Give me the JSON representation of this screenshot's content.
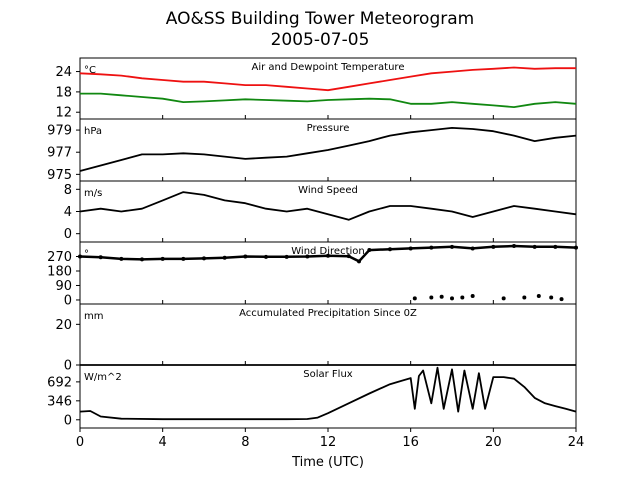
{
  "title_line1": "AO&SS Building Tower Meteorogram",
  "title_line2": "2005-07-05",
  "xlabel": "Time (UTC)",
  "colors": {
    "temperature": "#ee1111",
    "dewpoint": "#118811",
    "other": "#000000"
  },
  "chart_data": [
    {
      "type": "line",
      "title": "Air and Dewpoint Temperature",
      "unit_label": "°C",
      "xlim": [
        0,
        24
      ],
      "ylim": [
        10,
        28
      ],
      "yticks": [
        12,
        18,
        24
      ],
      "ytick_labels": [
        "12",
        "18",
        "24"
      ],
      "series": [
        {
          "color": "temperature",
          "x": [
            0,
            1,
            2,
            3,
            4,
            5,
            6,
            7,
            8,
            9,
            10,
            11,
            12,
            13,
            14,
            15,
            16,
            17,
            18,
            19,
            20,
            21,
            22,
            23,
            24
          ],
          "y": [
            23.5,
            23.2,
            22.8,
            22.0,
            21.5,
            21.0,
            21.0,
            20.5,
            20.0,
            20.0,
            19.5,
            19.0,
            18.5,
            19.5,
            20.5,
            21.5,
            22.5,
            23.5,
            24.0,
            24.5,
            24.8,
            25.2,
            24.8,
            25.0,
            25.0
          ]
        },
        {
          "color": "dewpoint",
          "x": [
            0,
            1,
            2,
            3,
            4,
            5,
            6,
            7,
            8,
            9,
            10,
            11,
            12,
            13,
            14,
            15,
            16,
            17,
            18,
            19,
            20,
            21,
            22,
            23,
            24
          ],
          "y": [
            17.5,
            17.5,
            17.0,
            16.5,
            16.0,
            15.0,
            15.2,
            15.5,
            15.8,
            15.6,
            15.4,
            15.2,
            15.6,
            15.8,
            16.0,
            15.8,
            14.5,
            14.5,
            15.0,
            14.5,
            14.0,
            13.5,
            14.5,
            15.0,
            14.5
          ]
        }
      ]
    },
    {
      "type": "line",
      "title": "Pressure",
      "unit_label": "hPa",
      "xlim": [
        0,
        24
      ],
      "ylim": [
        974.4,
        980.0
      ],
      "yticks": [
        975,
        977,
        979
      ],
      "ytick_labels": [
        "975",
        "977",
        "979"
      ],
      "series": [
        {
          "color": "other",
          "x": [
            0,
            1,
            2,
            3,
            4,
            5,
            6,
            7,
            8,
            9,
            10,
            11,
            12,
            13,
            14,
            15,
            16,
            17,
            18,
            19,
            20,
            21,
            22,
            23,
            24
          ],
          "y": [
            975.3,
            975.8,
            976.3,
            976.8,
            976.8,
            976.9,
            976.8,
            976.6,
            976.4,
            976.5,
            976.6,
            976.9,
            977.2,
            977.6,
            978.0,
            978.5,
            978.8,
            979.0,
            979.2,
            979.1,
            978.9,
            978.5,
            978.0,
            978.3,
            978.5
          ]
        }
      ]
    },
    {
      "type": "line",
      "title": "Wind Speed",
      "unit_label": "m/s",
      "xlim": [
        0,
        24
      ],
      "ylim": [
        -1.5,
        9.5
      ],
      "yticks": [
        0,
        4,
        8
      ],
      "ytick_labels": [
        "0",
        "4",
        "8"
      ],
      "series": [
        {
          "color": "other",
          "x": [
            0,
            1,
            2,
            3,
            4,
            5,
            6,
            7,
            8,
            9,
            10,
            11,
            12,
            13,
            14,
            15,
            16,
            17,
            18,
            19,
            20,
            21,
            22,
            23,
            24
          ],
          "y": [
            4.0,
            4.5,
            4.0,
            4.5,
            6.0,
            7.5,
            7.0,
            6.0,
            5.5,
            4.5,
            4.0,
            4.5,
            3.5,
            2.5,
            4.0,
            5.0,
            5.0,
            4.5,
            4.0,
            3.0,
            4.0,
            5.0,
            4.5,
            4.0,
            3.5
          ]
        }
      ]
    },
    {
      "type": "scatter",
      "title": "Wind Direction",
      "unit_label": "°",
      "xlim": [
        0,
        24
      ],
      "ylim": [
        -25,
        360
      ],
      "yticks": [
        0,
        90,
        180,
        270
      ],
      "ytick_labels": [
        "0",
        "90",
        "180",
        "270"
      ],
      "series": [
        {
          "color": "other",
          "x": [
            0,
            1,
            2,
            3,
            4,
            5,
            6,
            7,
            8,
            9,
            10,
            11,
            12,
            13,
            13.5,
            14,
            15,
            16,
            17,
            18,
            19,
            20,
            21,
            22,
            23,
            24
          ],
          "y": [
            270,
            265,
            255,
            252,
            255,
            255,
            258,
            262,
            270,
            268,
            268,
            270,
            275,
            272,
            240,
            310,
            315,
            320,
            325,
            330,
            320,
            330,
            335,
            330,
            330,
            325
          ]
        },
        {
          "color": "other",
          "x": [
            16.2,
            17,
            17.5,
            18,
            18.5,
            19,
            20.5,
            21.5,
            22.2,
            22.8,
            23.3
          ],
          "y": [
            10,
            15,
            20,
            10,
            15,
            25,
            10,
            15,
            25,
            15,
            5
          ]
        }
      ]
    },
    {
      "type": "line",
      "title": "Accumulated Precipitation Since 0Z",
      "unit_label": "mm",
      "xlim": [
        0,
        24
      ],
      "ylim": [
        0,
        30
      ],
      "yticks": [
        0,
        20
      ],
      "ytick_labels": [
        "0",
        "20"
      ],
      "series": [
        {
          "color": "other",
          "x": [
            0,
            24
          ],
          "y": [
            0,
            0
          ]
        }
      ]
    },
    {
      "type": "line",
      "title": "Solar Flux",
      "unit_label": "W/m^2",
      "xlim": [
        0,
        24
      ],
      "ylim": [
        -150,
        1000
      ],
      "yticks": [
        0,
        346,
        692
      ],
      "ytick_labels": [
        "0",
        "346",
        "692"
      ],
      "series": [
        {
          "color": "other",
          "x": [
            0,
            0.5,
            1,
            2,
            4,
            6,
            8,
            10,
            11,
            11.5,
            12,
            13,
            14,
            15,
            16,
            16.2,
            16.4,
            16.6,
            17,
            17.3,
            17.6,
            18,
            18.3,
            18.6,
            19,
            19.3,
            19.6,
            20,
            20.5,
            21,
            21.5,
            22,
            22.5,
            23,
            23.5,
            24
          ],
          "y": [
            150,
            160,
            60,
            20,
            10,
            10,
            10,
            10,
            15,
            40,
            120,
            300,
            480,
            650,
            760,
            200,
            800,
            900,
            300,
            950,
            200,
            920,
            150,
            900,
            200,
            850,
            200,
            780,
            780,
            750,
            600,
            400,
            300,
            250,
            200,
            150
          ]
        }
      ]
    }
  ],
  "xaxis": {
    "ticks": [
      0,
      4,
      8,
      12,
      16,
      20,
      24
    ],
    "tick_labels": [
      "0",
      "4",
      "8",
      "12",
      "16",
      "20",
      "24"
    ]
  }
}
